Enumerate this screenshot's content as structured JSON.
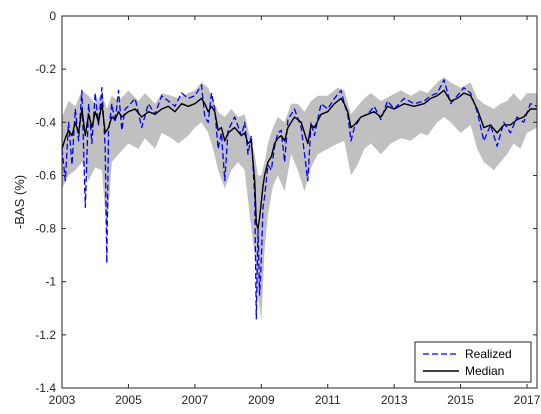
{
  "chart_data": {
    "type": "line",
    "title": "",
    "xlabel": "",
    "ylabel": "-BAS (%)",
    "xlim": [
      2003.0,
      2017.3
    ],
    "ylim": [
      -1.4,
      0
    ],
    "xticks": [
      2003,
      2005,
      2007,
      2009,
      2011,
      2013,
      2015,
      2017
    ],
    "xtick_labels": [
      "2003",
      "2005",
      "2007",
      "2009",
      "2011",
      "2013",
      "2015",
      "2017"
    ],
    "yticks": [
      0,
      -0.2,
      -0.4,
      -0.6,
      -0.8,
      -1,
      -1.2,
      -1.4
    ],
    "ytick_labels": [
      "0",
      "-0.2",
      "-0.4",
      "-0.6",
      "-0.8",
      "-1",
      "-1.2",
      "-1.4"
    ],
    "grid": false,
    "legend_position": "bottom-right",
    "colors": {
      "band": "#c0c0c0",
      "realized": "#0000ff",
      "median": "#000000",
      "axis": "#262626"
    },
    "band": {
      "x": [
        2003.0,
        2003.2,
        2003.4,
        2003.6,
        2003.8,
        2004.0,
        2004.2,
        2004.35,
        2004.5,
        2004.7,
        2005.0,
        2005.3,
        2005.5,
        2005.8,
        2006.0,
        2006.3,
        2006.5,
        2006.8,
        2007.0,
        2007.2,
        2007.4,
        2007.55,
        2007.7,
        2007.9,
        2008.1,
        2008.3,
        2008.5,
        2008.65,
        2008.8,
        2008.9,
        2009.0,
        2009.1,
        2009.2,
        2009.35,
        2009.5,
        2009.7,
        2009.9,
        2010.1,
        2010.3,
        2010.5,
        2010.7,
        2011.0,
        2011.3,
        2011.5,
        2011.7,
        2011.9,
        2012.1,
        2012.3,
        2012.6,
        2012.9,
        2013.2,
        2013.5,
        2013.8,
        2014.0,
        2014.3,
        2014.5,
        2014.7,
        2015.0,
        2015.3,
        2015.5,
        2015.7,
        2016.0,
        2016.2,
        2016.4,
        2016.6,
        2016.8,
        2017.0,
        2017.3
      ],
      "upper": [
        -0.38,
        -0.32,
        -0.34,
        -0.28,
        -0.3,
        -0.33,
        -0.29,
        -0.35,
        -0.3,
        -0.32,
        -0.28,
        -0.32,
        -0.29,
        -0.33,
        -0.29,
        -0.3,
        -0.31,
        -0.29,
        -0.28,
        -0.25,
        -0.27,
        -0.32,
        -0.36,
        -0.38,
        -0.35,
        -0.38,
        -0.37,
        -0.45,
        -0.52,
        -0.6,
        -0.6,
        -0.55,
        -0.48,
        -0.42,
        -0.38,
        -0.4,
        -0.33,
        -0.33,
        -0.36,
        -0.32,
        -0.3,
        -0.3,
        -0.27,
        -0.28,
        -0.37,
        -0.34,
        -0.31,
        -0.29,
        -0.32,
        -0.3,
        -0.28,
        -0.3,
        -0.28,
        -0.29,
        -0.25,
        -0.23,
        -0.25,
        -0.27,
        -0.25,
        -0.31,
        -0.33,
        -0.35,
        -0.33,
        -0.32,
        -0.29,
        -0.32,
        -0.29,
        -0.29
      ],
      "lower": [
        -0.65,
        -0.6,
        -0.58,
        -0.55,
        -0.62,
        -0.57,
        -0.58,
        -0.82,
        -0.55,
        -0.52,
        -0.48,
        -0.5,
        -0.46,
        -0.5,
        -0.44,
        -0.46,
        -0.48,
        -0.45,
        -0.42,
        -0.4,
        -0.44,
        -0.5,
        -0.58,
        -0.65,
        -0.58,
        -0.55,
        -0.58,
        -0.75,
        -0.9,
        -1.05,
        -1.15,
        -0.88,
        -0.75,
        -0.64,
        -0.6,
        -0.66,
        -0.52,
        -0.58,
        -0.66,
        -0.57,
        -0.52,
        -0.5,
        -0.48,
        -0.47,
        -0.6,
        -0.56,
        -0.5,
        -0.48,
        -0.52,
        -0.48,
        -0.46,
        -0.47,
        -0.44,
        -0.45,
        -0.4,
        -0.38,
        -0.4,
        -0.44,
        -0.41,
        -0.5,
        -0.55,
        -0.58,
        -0.55,
        -0.52,
        -0.48,
        -0.5,
        -0.44,
        -0.42
      ]
    },
    "series": [
      {
        "name": "Realized",
        "style": "dashed",
        "x": [
          2003.0,
          2003.1,
          2003.2,
          2003.3,
          2003.4,
          2003.5,
          2003.6,
          2003.7,
          2003.8,
          2003.9,
          2004.0,
          2004.1,
          2004.2,
          2004.3,
          2004.35,
          2004.4,
          2004.5,
          2004.6,
          2004.7,
          2004.8,
          2004.9,
          2005.0,
          2005.2,
          2005.4,
          2005.6,
          2005.8,
          2006.0,
          2006.2,
          2006.4,
          2006.6,
          2006.8,
          2007.0,
          2007.2,
          2007.3,
          2007.4,
          2007.5,
          2007.6,
          2007.7,
          2007.8,
          2007.9,
          2008.0,
          2008.2,
          2008.4,
          2008.5,
          2008.6,
          2008.7,
          2008.8,
          2008.85,
          2008.9,
          2008.95,
          2009.0,
          2009.05,
          2009.1,
          2009.2,
          2009.3,
          2009.4,
          2009.5,
          2009.6,
          2009.7,
          2009.8,
          2009.9,
          2010.0,
          2010.2,
          2010.4,
          2010.5,
          2010.6,
          2010.8,
          2011.0,
          2011.2,
          2011.4,
          2011.5,
          2011.6,
          2011.7,
          2011.8,
          2012.0,
          2012.2,
          2012.4,
          2012.6,
          2012.8,
          2013.0,
          2013.3,
          2013.6,
          2013.9,
          2014.1,
          2014.3,
          2014.5,
          2014.7,
          2014.9,
          2015.1,
          2015.3,
          2015.5,
          2015.7,
          2015.9,
          2016.1,
          2016.3,
          2016.5,
          2016.7,
          2016.9,
          2017.1,
          2017.3
        ],
        "y": [
          -0.5,
          -0.62,
          -0.4,
          -0.56,
          -0.35,
          -0.47,
          -0.28,
          -0.72,
          -0.33,
          -0.48,
          -0.29,
          -0.41,
          -0.27,
          -0.5,
          -0.93,
          -0.44,
          -0.33,
          -0.4,
          -0.28,
          -0.43,
          -0.35,
          -0.34,
          -0.31,
          -0.42,
          -0.33,
          -0.37,
          -0.3,
          -0.32,
          -0.34,
          -0.29,
          -0.31,
          -0.3,
          -0.26,
          -0.38,
          -0.4,
          -0.29,
          -0.35,
          -0.5,
          -0.44,
          -0.62,
          -0.43,
          -0.38,
          -0.45,
          -0.4,
          -0.52,
          -0.45,
          -0.68,
          -1.14,
          -0.8,
          -1.05,
          -0.92,
          -0.72,
          -0.68,
          -0.56,
          -0.58,
          -0.49,
          -0.44,
          -0.43,
          -0.55,
          -0.39,
          -0.37,
          -0.35,
          -0.42,
          -0.62,
          -0.4,
          -0.45,
          -0.33,
          -0.35,
          -0.31,
          -0.28,
          -0.33,
          -0.37,
          -0.47,
          -0.42,
          -0.38,
          -0.37,
          -0.34,
          -0.39,
          -0.32,
          -0.35,
          -0.31,
          -0.33,
          -0.32,
          -0.3,
          -0.29,
          -0.24,
          -0.33,
          -0.3,
          -0.27,
          -0.29,
          -0.36,
          -0.47,
          -0.41,
          -0.49,
          -0.4,
          -0.44,
          -0.38,
          -0.4,
          -0.33,
          -0.34
        ]
      },
      {
        "name": "Median",
        "style": "solid",
        "x": [
          2003.0,
          2003.1,
          2003.2,
          2003.3,
          2003.4,
          2003.5,
          2003.6,
          2003.7,
          2003.8,
          2003.9,
          2004.0,
          2004.1,
          2004.2,
          2004.3,
          2004.4,
          2004.5,
          2004.6,
          2004.7,
          2004.8,
          2004.9,
          2005.0,
          2005.2,
          2005.4,
          2005.6,
          2005.8,
          2006.0,
          2006.2,
          2006.4,
          2006.6,
          2006.8,
          2007.0,
          2007.2,
          2007.3,
          2007.4,
          2007.5,
          2007.6,
          2007.7,
          2007.8,
          2007.9,
          2008.0,
          2008.2,
          2008.4,
          2008.5,
          2008.6,
          2008.7,
          2008.8,
          2008.85,
          2008.9,
          2008.95,
          2009.0,
          2009.05,
          2009.1,
          2009.2,
          2009.3,
          2009.4,
          2009.5,
          2009.6,
          2009.7,
          2009.8,
          2009.9,
          2010.0,
          2010.2,
          2010.4,
          2010.5,
          2010.6,
          2010.8,
          2011.0,
          2011.2,
          2011.4,
          2011.5,
          2011.6,
          2011.7,
          2011.8,
          2012.0,
          2012.2,
          2012.4,
          2012.6,
          2012.8,
          2013.0,
          2013.3,
          2013.6,
          2013.9,
          2014.1,
          2014.3,
          2014.5,
          2014.7,
          2014.9,
          2015.1,
          2015.3,
          2015.5,
          2015.7,
          2015.9,
          2016.1,
          2016.3,
          2016.5,
          2016.7,
          2016.9,
          2017.1,
          2017.3
        ],
        "y": [
          -0.5,
          -0.46,
          -0.43,
          -0.45,
          -0.4,
          -0.44,
          -0.35,
          -0.45,
          -0.37,
          -0.42,
          -0.36,
          -0.4,
          -0.33,
          -0.44,
          -0.42,
          -0.38,
          -0.39,
          -0.36,
          -0.38,
          -0.37,
          -0.36,
          -0.35,
          -0.38,
          -0.36,
          -0.37,
          -0.35,
          -0.34,
          -0.36,
          -0.33,
          -0.34,
          -0.33,
          -0.31,
          -0.33,
          -0.36,
          -0.34,
          -0.36,
          -0.43,
          -0.42,
          -0.47,
          -0.44,
          -0.42,
          -0.45,
          -0.44,
          -0.48,
          -0.47,
          -0.62,
          -0.78,
          -0.8,
          -0.76,
          -0.7,
          -0.64,
          -0.6,
          -0.55,
          -0.53,
          -0.48,
          -0.46,
          -0.45,
          -0.47,
          -0.42,
          -0.4,
          -0.38,
          -0.4,
          -0.48,
          -0.41,
          -0.42,
          -0.37,
          -0.36,
          -0.33,
          -0.31,
          -0.33,
          -0.36,
          -0.42,
          -0.41,
          -0.38,
          -0.37,
          -0.36,
          -0.38,
          -0.34,
          -0.35,
          -0.33,
          -0.34,
          -0.33,
          -0.31,
          -0.3,
          -0.28,
          -0.32,
          -0.31,
          -0.29,
          -0.3,
          -0.35,
          -0.42,
          -0.41,
          -0.44,
          -0.41,
          -0.41,
          -0.39,
          -0.38,
          -0.35,
          -0.35
        ]
      }
    ]
  }
}
